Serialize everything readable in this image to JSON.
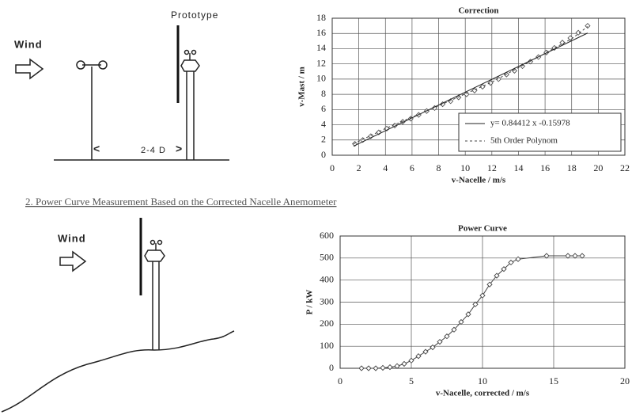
{
  "diagram": {
    "wind_top": "Wind",
    "prototype": "Prototype",
    "distance": "2-4 D",
    "wind_bottom": "Wind",
    "heading": "2. Power Curve Measurement Based on the Corrected Nacelle Anemometer"
  },
  "chart_data": [
    {
      "type": "scatter",
      "title": "Correction",
      "x_label": "v-Nacelle / m/s",
      "y_label": "v-Mast / m",
      "xlim": [
        0,
        22
      ],
      "ylim": [
        0,
        18
      ],
      "xticks": [
        0,
        2,
        4,
        6,
        8,
        10,
        12,
        14,
        16,
        18,
        20,
        22
      ],
      "yticks": [
        0,
        2,
        4,
        6,
        8,
        10,
        12,
        14,
        16,
        18
      ],
      "grid": true,
      "legend": "lower right",
      "series": [
        {
          "style": "markers",
          "color": "#555555",
          "x": [
            1.7,
            2.3,
            2.9,
            3.5,
            4.1,
            4.7,
            5.3,
            5.9,
            6.5,
            7.1,
            7.7,
            8.3,
            8.9,
            9.5,
            10.1,
            10.7,
            11.3,
            11.9,
            12.5,
            13.1,
            13.7,
            14.3,
            14.9,
            15.5,
            16.1,
            16.7,
            17.3,
            17.9,
            18.5,
            19.2
          ],
          "values": [
            1.5,
            2.0,
            2.5,
            3.0,
            3.5,
            3.9,
            4.4,
            4.8,
            5.3,
            5.8,
            6.2,
            6.7,
            7.1,
            7.6,
            8.0,
            8.5,
            9.0,
            9.5,
            10.0,
            10.6,
            11.1,
            11.7,
            12.3,
            12.9,
            13.5,
            14.1,
            14.8,
            15.4,
            16.1,
            17.0
          ]
        },
        {
          "name": "y= 0.84412 x -0.15978",
          "style": "solid",
          "color": "#222222",
          "x": [
            1.6,
            19.2
          ],
          "values": [
            1.19,
            16.05
          ]
        },
        {
          "name": "5th Order Polynom",
          "style": "dotted",
          "color": "#444444",
          "x": [
            1.6,
            4,
            8,
            12,
            16,
            18,
            19.2
          ],
          "values": [
            1.5,
            3.5,
            6.5,
            9.6,
            13.4,
            15.3,
            16.9
          ]
        }
      ]
    },
    {
      "type": "line",
      "title": "Power Curve",
      "x_label": "v-Nacelle, corrected / m/s",
      "y_label": "P / kW",
      "xlim": [
        0,
        20
      ],
      "ylim": [
        0,
        600
      ],
      "xticks": [
        0,
        5,
        10,
        15,
        20
      ],
      "yticks": [
        0,
        100,
        200,
        300,
        400,
        500,
        600
      ],
      "grid": true,
      "markers": true,
      "series": [
        {
          "color": "#444444",
          "x": [
            1.5,
            2,
            2.5,
            3,
            3.5,
            4,
            4.5,
            5,
            5.5,
            6,
            6.5,
            7,
            7.5,
            8,
            8.5,
            9,
            9.5,
            10,
            10.5,
            11,
            11.5,
            12,
            12.5,
            14.5,
            16,
            16.5,
            17
          ],
          "values": [
            0,
            0,
            0,
            2,
            5,
            10,
            20,
            35,
            55,
            75,
            95,
            120,
            145,
            175,
            210,
            245,
            290,
            330,
            380,
            420,
            450,
            480,
            495,
            510,
            510,
            510,
            510
          ]
        }
      ]
    }
  ]
}
